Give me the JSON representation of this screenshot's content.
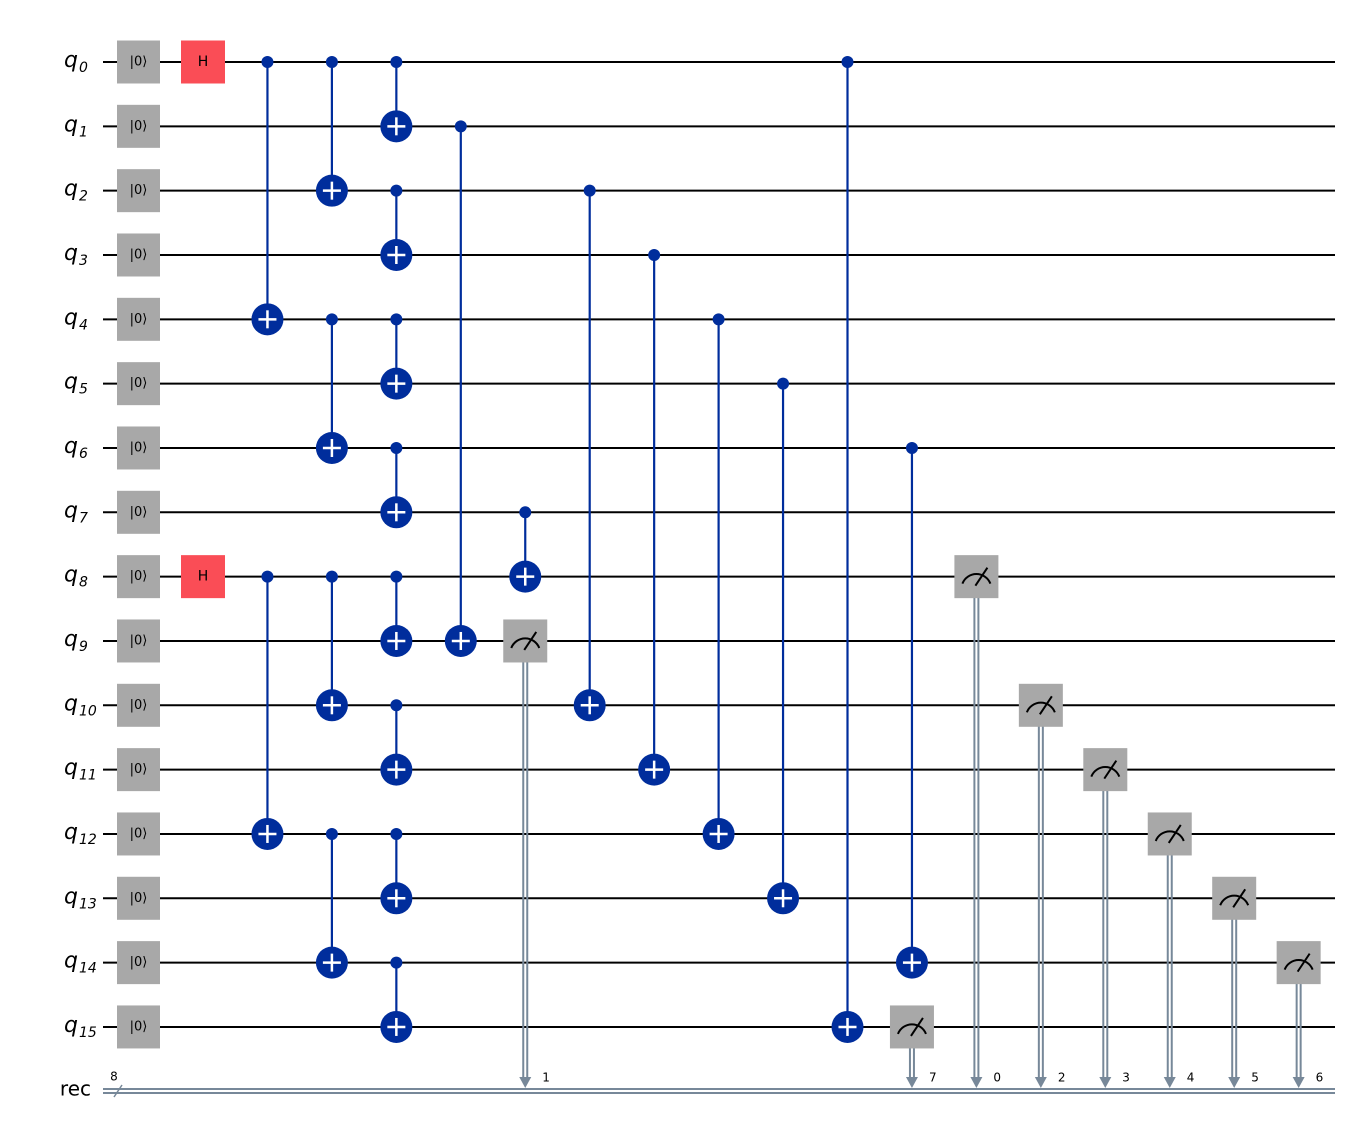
{
  "register": {
    "name": "rec",
    "size": "8"
  },
  "reset_label": "|0⟩",
  "qubits": [
    {
      "name": "q",
      "index": "0"
    },
    {
      "name": "q",
      "index": "1"
    },
    {
      "name": "q",
      "index": "2"
    },
    {
      "name": "q",
      "index": "3"
    },
    {
      "name": "q",
      "index": "4"
    },
    {
      "name": "q",
      "index": "5"
    },
    {
      "name": "q",
      "index": "6"
    },
    {
      "name": "q",
      "index": "7"
    },
    {
      "name": "q",
      "index": "8"
    },
    {
      "name": "q",
      "index": "9"
    },
    {
      "name": "q",
      "index": "10"
    },
    {
      "name": "q",
      "index": "11"
    },
    {
      "name": "q",
      "index": "12"
    },
    {
      "name": "q",
      "index": "13"
    },
    {
      "name": "q",
      "index": "14"
    },
    {
      "name": "q",
      "index": "15"
    }
  ],
  "moments": [
    [
      {
        "gate": "H",
        "qubit": 0
      },
      {
        "gate": "H",
        "qubit": 8
      }
    ],
    [
      {
        "control": 0,
        "target": 4
      },
      {
        "control": 8,
        "target": 12
      }
    ],
    [
      {
        "control": 0,
        "target": 2
      },
      {
        "control": 4,
        "target": 6
      },
      {
        "control": 8,
        "target": 10
      },
      {
        "control": 12,
        "target": 14
      }
    ],
    [
      {
        "control": 0,
        "target": 1
      },
      {
        "control": 2,
        "target": 3
      },
      {
        "control": 4,
        "target": 5
      },
      {
        "control": 6,
        "target": 7
      },
      {
        "control": 8,
        "target": 9
      },
      {
        "control": 10,
        "target": 11
      },
      {
        "control": 12,
        "target": 13
      },
      {
        "control": 14,
        "target": 15
      }
    ],
    [
      {
        "control": 1,
        "target": 9
      }
    ],
    [
      {
        "control": 7,
        "target": 8
      },
      {
        "measure": 9,
        "bit": "1"
      }
    ],
    [
      {
        "control": 2,
        "target": 10
      }
    ],
    [
      {
        "control": 3,
        "target": 11
      }
    ],
    [
      {
        "control": 4,
        "target": 12
      }
    ],
    [
      {
        "control": 5,
        "target": 13
      }
    ],
    [
      {
        "control": 0,
        "target": 15
      }
    ],
    [
      {
        "control": 6,
        "target": 14
      },
      {
        "measure": 15,
        "bit": "7"
      }
    ],
    [
      {
        "measure": 8,
        "bit": "0"
      }
    ],
    [
      {
        "measure": 10,
        "bit": "2"
      }
    ],
    [
      {
        "measure": 11,
        "bit": "3"
      }
    ],
    [
      {
        "measure": 12,
        "bit": "4"
      }
    ],
    [
      {
        "measure": 13,
        "bit": "5"
      }
    ],
    [
      {
        "measure": 14,
        "bit": "6"
      }
    ]
  ]
}
